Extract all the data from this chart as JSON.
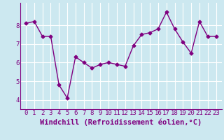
{
  "x": [
    0,
    1,
    2,
    3,
    4,
    5,
    6,
    7,
    8,
    9,
    10,
    11,
    12,
    13,
    14,
    15,
    16,
    17,
    18,
    19,
    20,
    21,
    22,
    23
  ],
  "y": [
    8.1,
    8.2,
    7.4,
    7.4,
    4.8,
    4.1,
    6.3,
    6.0,
    5.7,
    5.9,
    6.0,
    5.9,
    5.8,
    6.9,
    7.5,
    7.6,
    7.8,
    8.7,
    7.8,
    7.1,
    6.5,
    8.2,
    7.4,
    7.4
  ],
  "line_color": "#800080",
  "marker": "D",
  "marker_size": 2.5,
  "line_width": 1.0,
  "xlabel": "Windchill (Refroidissement éolien,°C)",
  "ylim": [
    3.5,
    9.2
  ],
  "yticks": [
    4,
    5,
    6,
    7,
    8
  ],
  "xtick_labels": [
    "0",
    "1",
    "2",
    "3",
    "4",
    "5",
    "6",
    "7",
    "8",
    "9",
    "10",
    "11",
    "12",
    "13",
    "14",
    "15",
    "16",
    "17",
    "18",
    "19",
    "20",
    "21",
    "22",
    "23"
  ],
  "background_color": "#cce8f0",
  "grid_color": "#ffffff",
  "xlabel_fontsize": 7.5,
  "tick_fontsize": 6.5
}
